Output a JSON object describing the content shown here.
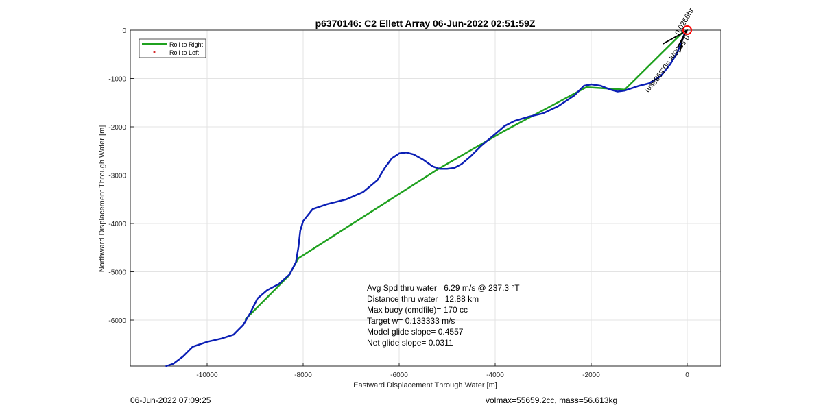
{
  "chart_data": {
    "type": "line",
    "title": "p6370146: C2 Ellett Array 06-Jun-2022 02:51:59Z",
    "xlabel": "Eastward Displacement Through Water [m]",
    "ylabel": "Northward Displacement Through Water [m]",
    "xlim": [
      -11600,
      700
    ],
    "ylim": [
      -6950,
      0
    ],
    "x_ticks": [
      -10000,
      -8000,
      -6000,
      -4000,
      -2000,
      0
    ],
    "y_ticks": [
      0,
      -1000,
      -2000,
      -3000,
      -4000,
      -5000,
      -6000
    ],
    "x_tick_labels": [
      "-10000",
      "-8000",
      "-6000",
      "-4000",
      "-2000",
      "0"
    ],
    "y_tick_labels": [
      "0",
      "-1000",
      "-2000",
      "-3000",
      "-4000",
      "-5000",
      "-6000"
    ],
    "grid": true,
    "legend": {
      "location": "top-left",
      "entries": [
        {
          "label": "Roll to Right",
          "color": "#1fa11f",
          "marker": "line"
        },
        {
          "label": "Roll to Left",
          "color": "#d62728",
          "marker": "dot"
        }
      ]
    },
    "series": [
      {
        "name": "Roll to Right",
        "color": "#1fa11f",
        "x": [
          -9200,
          -8300,
          -8100,
          -5200,
          -3800,
          -2100,
          -1300,
          -100
        ],
        "y": [
          -5980,
          -5080,
          -4720,
          -2880,
          -2080,
          -1180,
          -1230,
          -50
        ]
      },
      {
        "color": "#0b1fb5",
        "x": [
          -10850,
          -10700,
          -10500,
          -10300,
          -10000,
          -9700,
          -9450,
          -9250,
          -9100,
          -8950,
          -8750,
          -8500,
          -8280,
          -8150,
          -8100,
          -8060,
          -8000,
          -7800,
          -7500,
          -7100,
          -6750,
          -6450,
          -6300,
          -6150,
          -6000,
          -5850,
          -5700,
          -5500,
          -5300,
          -5150,
          -5000,
          -4850,
          -4700,
          -4500,
          -4300,
          -4000,
          -3800,
          -3600,
          -3300,
          -3000,
          -2700,
          -2350,
          -2150,
          -2000,
          -1800,
          -1600,
          -1450,
          -1300,
          -1000,
          -800,
          -550,
          -350,
          -200,
          -120,
          -60
        ],
        "y": [
          -6950,
          -6900,
          -6750,
          -6550,
          -6450,
          -6380,
          -6300,
          -6100,
          -5850,
          -5550,
          -5380,
          -5250,
          -5050,
          -4800,
          -4500,
          -4150,
          -3950,
          -3700,
          -3600,
          -3500,
          -3350,
          -3100,
          -2850,
          -2650,
          -2550,
          -2530,
          -2570,
          -2680,
          -2820,
          -2870,
          -2870,
          -2850,
          -2770,
          -2600,
          -2400,
          -2150,
          -1980,
          -1880,
          -1790,
          -1720,
          -1580,
          -1350,
          -1150,
          -1120,
          -1150,
          -1230,
          -1270,
          -1250,
          -1150,
          -1100,
          -950,
          -700,
          -450,
          -250,
          -80
        ]
      },
      {
        "color": "#000000",
        "x": [
          -500,
          -100,
          0,
          -200,
          -50,
          -100,
          -150
        ],
        "y": [
          -280,
          -60,
          0,
          -350,
          -80,
          -200,
          -450
        ]
      }
    ],
    "marker": {
      "type": "circle",
      "x": 0,
      "y": 0,
      "color": "#ff0000"
    },
    "annotations": {
      "stats": [
        "Avg Spd thru water=  6.29 m/s @ 237.3 °T",
        "Distance thru water= 12.88 km",
        "Max buoy (cmdfile)= 170 cc",
        "Target w= 0.133333 m/s",
        "Model glide slope= 0.4557",
        "Net glide slope= 0.0311"
      ],
      "rotated_label_1": "0.5988hr =0.5988km",
      "rotated_label_2": "0.0266hr"
    }
  },
  "footer": {
    "timestamp": "06-Jun-2022 07:09:25",
    "mass_info": "volmax=55659.2cc, mass=56.613kg"
  }
}
